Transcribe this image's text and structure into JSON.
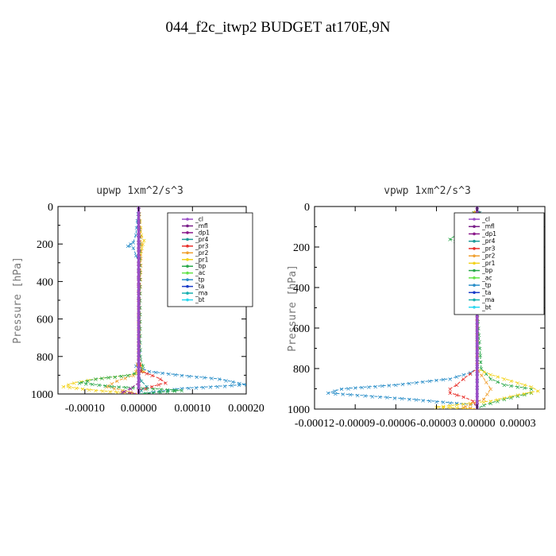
{
  "figure": {
    "title": "044_f2c_itwp2  BUDGET at170E,9N"
  },
  "legend_entries": [
    {
      "label": "_cl",
      "color": "#9a4fc8"
    },
    {
      "label": "_mfl",
      "color": "#7a1f8a"
    },
    {
      "label": "_dp1",
      "color": "#8b1a8b"
    },
    {
      "label": "_pr4",
      "color": "#1e9a9a"
    },
    {
      "label": "_pr3",
      "color": "#e8302b"
    },
    {
      "label": "_pr2",
      "color": "#f0a030"
    },
    {
      "label": "_pr1",
      "color": "#f2d21c"
    },
    {
      "label": "_bp",
      "color": "#2aa84a"
    },
    {
      "label": "_ac",
      "color": "#66e34a"
    },
    {
      "label": "_tp",
      "color": "#2a8ec8"
    },
    {
      "label": "_ta",
      "color": "#1a3cc8"
    },
    {
      "label": "_ma",
      "color": "#1ab0b0"
    },
    {
      "label": "_bt",
      "color": "#2ad8f0"
    }
  ],
  "chart_data": [
    {
      "type": "line",
      "title": "upwp   1xm^2/s^3",
      "ylabel": "Pressure [hPa]",
      "xlabel": "",
      "xlim": [
        -0.00015,
        0.0002
      ],
      "ylim": [
        1000,
        0
      ],
      "xticks": [
        -0.0001,
        0.0,
        0.0001,
        0.0002
      ],
      "xtick_labels": [
        "-0.00010",
        "0.00000",
        "0.00010",
        "0.00020"
      ],
      "yticks": [
        0,
        200,
        400,
        600,
        800,
        1000
      ],
      "ytick_labels": [
        "0",
        "200",
        "400",
        "600",
        "800",
        "1000"
      ],
      "series": [
        {
          "name": "_tp",
          "color": "#2a8ec8",
          "y": [
            0,
            150,
            190,
            200,
            210,
            220,
            300,
            500,
            700,
            800,
            850,
            880,
            900,
            920,
            950,
            970,
            1000
          ],
          "x": [
            0,
            -5e-06,
            -1e-05,
            -1.5e-05,
            -2e-05,
            -1e-05,
            0,
            0,
            0,
            3e-06,
            -5e-06,
            2e-05,
            8e-05,
            0.00015,
            0.0002,
            8e-05,
            0
          ]
        },
        {
          "name": "_pr1",
          "color": "#f2d21c",
          "y": [
            0,
            150,
            180,
            200,
            220,
            250,
            300,
            500,
            700,
            800,
            850,
            880,
            900,
            920,
            940,
            960,
            980,
            1000
          ],
          "x": [
            0,
            5e-06,
            1e-05,
            8e-06,
            6e-06,
            4e-06,
            2e-06,
            0,
            0,
            0,
            5e-06,
            1e-05,
            -2e-05,
            -8e-05,
            -0.00012,
            -0.00014,
            -8e-05,
            0
          ]
        },
        {
          "name": "_pr2",
          "color": "#f0a030",
          "y": [
            0,
            200,
            800,
            880,
            900,
            930,
            960,
            980,
            1000
          ],
          "x": [
            0,
            5e-06,
            0,
            -5e-06,
            -1e-05,
            -4e-05,
            -6e-05,
            -3e-05,
            0
          ]
        },
        {
          "name": "_bp",
          "color": "#2aa84a",
          "y": [
            0,
            200,
            800,
            850,
            880,
            900,
            920,
            940,
            960,
            980,
            1000
          ],
          "x": [
            0,
            2e-06,
            3e-06,
            8e-06,
            5e-06,
            -2e-05,
            -8e-05,
            -0.00011,
            -5e-05,
            8e-05,
            0
          ]
        },
        {
          "name": "_pr3",
          "color": "#e8302b",
          "y": [
            0,
            800,
            880,
            900,
            920,
            940,
            960,
            980,
            1000
          ],
          "x": [
            0,
            0,
            5e-06,
            2.5e-05,
            4e-05,
            5e-05,
            2.5e-05,
            0,
            0
          ]
        },
        {
          "name": "_pr4",
          "color": "#1e9a9a",
          "y": [
            0,
            900,
            930,
            960,
            980,
            1000
          ],
          "x": [
            0,
            0,
            5e-06,
            1.5e-05,
            5e-06,
            0
          ]
        },
        {
          "name": "_dp1",
          "color": "#8b1a8b",
          "y": [
            0,
            940,
            970,
            990,
            1000
          ],
          "x": [
            0,
            0,
            -1.5e-05,
            -3e-05,
            0
          ]
        },
        {
          "name": "_mfl",
          "color": "#7a1f8a",
          "y": [
            0,
            1000
          ],
          "x": [
            0,
            0
          ]
        },
        {
          "name": "_cl",
          "color": "#9a4fc8",
          "y": [
            0,
            1000
          ],
          "x": [
            0,
            0
          ]
        }
      ]
    },
    {
      "type": "line",
      "title": "vpwp   1xm^2/s^3",
      "ylabel": "Pressure [hPa]",
      "xlabel": "",
      "xlim": [
        -0.00012,
        5e-05
      ],
      "ylim": [
        1000,
        0
      ],
      "xticks": [
        -0.00012,
        -9e-05,
        -6e-05,
        -3e-05,
        0.0,
        3e-05
      ],
      "xtick_labels": [
        "-0.00012",
        "-0.00009",
        "-0.00006",
        "-0.00003",
        "0.00000",
        "0.00003"
      ],
      "yticks": [
        0,
        200,
        400,
        600,
        800,
        1000
      ],
      "ytick_labels": [
        "0",
        "200",
        "400",
        "600",
        "800",
        "1000"
      ],
      "series": [
        {
          "name": "_tp",
          "color": "#2a8ec8",
          "y": [
            0,
            120,
            140,
            160,
            180,
            200,
            300,
            500,
            700,
            800,
            820,
            850,
            880,
            900,
            920,
            950,
            980,
            1000
          ],
          "x": [
            0,
            5e-06,
            8e-06,
            3e-06,
            -2e-06,
            0,
            0,
            0,
            0,
            0,
            -5e-06,
            -2e-05,
            -6e-05,
            -0.0001,
            -0.00011,
            -5e-05,
            0,
            0
          ]
        },
        {
          "name": "_bp",
          "color": "#2aa84a",
          "y": [
            0,
            120,
            140,
            160,
            180,
            200,
            220,
            300,
            500,
            800,
            850,
            880,
            900,
            920,
            950,
            980,
            1000
          ],
          "x": [
            0,
            -1e-05,
            -1.5e-05,
            -2e-05,
            -1.2e-05,
            -5e-06,
            -2e-06,
            0,
            0,
            3e-06,
            1e-05,
            2e-05,
            4e-05,
            4e-05,
            2e-05,
            5e-06,
            0
          ]
        },
        {
          "name": "_pr1",
          "color": "#f2d21c",
          "y": [
            0,
            120,
            140,
            160,
            200,
            250,
            300,
            500,
            800,
            830,
            860,
            890,
            910,
            930,
            960,
            990,
            1000
          ],
          "x": [
            0,
            -5e-06,
            -1e-05,
            -5e-06,
            0,
            3e-06,
            2e-06,
            0,
            0,
            1e-05,
            2.5e-05,
            4e-05,
            4.5e-05,
            3e-05,
            1e-05,
            -3e-05,
            0
          ]
        },
        {
          "name": "_pr2",
          "color": "#f0a030",
          "y": [
            0,
            120,
            150,
            180,
            210,
            300,
            800,
            900,
            950,
            990,
            1000
          ],
          "x": [
            0,
            -8e-06,
            -1.2e-05,
            -5e-06,
            0,
            0,
            0,
            1e-05,
            5e-06,
            -1e-05,
            0
          ]
        },
        {
          "name": "_pr3",
          "color": "#e8302b",
          "y": [
            0,
            120,
            140,
            160,
            180,
            200,
            300,
            800,
            850,
            880,
            900,
            920,
            940,
            960,
            1000
          ],
          "x": [
            0,
            5e-06,
            3e-06,
            6e-06,
            4e-06,
            0,
            0,
            0,
            -1e-05,
            -1.5e-05,
            -2e-05,
            -2e-05,
            -1e-05,
            -3e-06,
            0
          ]
        },
        {
          "name": "_pr4",
          "color": "#1e9a9a",
          "y": [
            0,
            120,
            150,
            180,
            220,
            300,
            1000
          ],
          "x": [
            0,
            8e-06,
            1e-05,
            6e-06,
            2e-06,
            0,
            0
          ]
        },
        {
          "name": "_mfl",
          "color": "#7a1f8a",
          "y": [
            0,
            1000
          ],
          "x": [
            0,
            0
          ]
        },
        {
          "name": "_cl",
          "color": "#9a4fc8",
          "y": [
            0,
            1000
          ],
          "x": [
            0,
            0
          ]
        }
      ]
    }
  ]
}
